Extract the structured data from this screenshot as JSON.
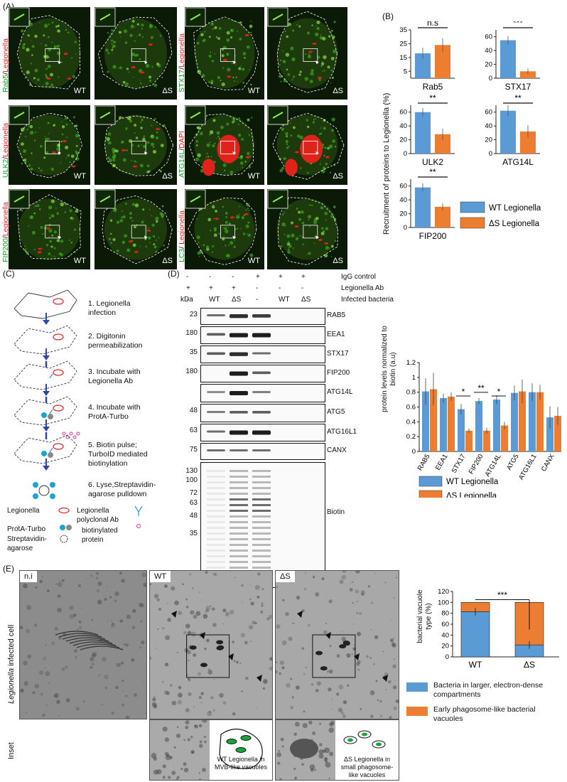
{
  "panels": {
    "A": "(A)",
    "B": "(B)",
    "C": "(C)",
    "D": "(D)",
    "E": "(E)"
  },
  "panelA": {
    "rows": [
      {
        "stain_green": "Rab5",
        "sep": "/",
        "stain_red": "Legionella"
      },
      {
        "stain_green": "ULK2",
        "sep": "/",
        "stain_red": "Legionella"
      },
      {
        "stain_green": "FIP200",
        "sep": "/",
        "stain_red": "Legionella"
      }
    ],
    "rows_right": [
      {
        "stain_green": "STX17",
        "sep": "/",
        "stain_red": "Legionella"
      },
      {
        "stain_green": "ATG14L",
        "sep": "/",
        "stain_red": "DAPI"
      },
      {
        "stain_green": "LC3",
        "sep": "/ ",
        "stain_red": "Legionella"
      }
    ],
    "wt": "WT",
    "ds": "ΔS"
  },
  "panelB": {
    "ylabel": "Recruitment of proteins to Legionella (%)",
    "legend": [
      {
        "name": "WT Legionella",
        "color": "#5b9bd5"
      },
      {
        "name": "ΔS Legionella",
        "color": "#ed7d31"
      }
    ]
  },
  "chart_data": [
    {
      "type": "bar",
      "title": "Rab5",
      "categories": [
        "WT",
        "ΔS"
      ],
      "values": [
        18,
        24
      ],
      "errors": [
        4,
        5
      ],
      "yticks": [
        5,
        15,
        25,
        35
      ],
      "ylim": [
        0,
        35
      ],
      "sig": "n.s"
    },
    {
      "type": "bar",
      "title": "STX17",
      "categories": [
        "WT",
        "ΔS"
      ],
      "values": [
        55,
        10
      ],
      "errors": [
        6,
        4
      ],
      "yticks": [
        0,
        20,
        40,
        60
      ],
      "ylim": [
        0,
        70
      ],
      "sig": "***"
    },
    {
      "type": "bar",
      "title": "ULK2",
      "categories": [
        "WT",
        "ΔS"
      ],
      "values": [
        60,
        28
      ],
      "errors": [
        6,
        8
      ],
      "yticks": [
        0,
        20,
        40,
        60
      ],
      "ylim": [
        0,
        70
      ],
      "sig": "**"
    },
    {
      "type": "bar",
      "title": "ATG14L",
      "categories": [
        "WT",
        "ΔS"
      ],
      "values": [
        62,
        32
      ],
      "errors": [
        8,
        9
      ],
      "yticks": [
        0,
        20,
        40,
        60
      ],
      "ylim": [
        0,
        70
      ],
      "sig": "**"
    },
    {
      "type": "bar",
      "title": "FIP200",
      "categories": [
        "WT",
        "ΔS"
      ],
      "values": [
        58,
        30
      ],
      "errors": [
        6,
        5
      ],
      "yticks": [
        0,
        20,
        40,
        60
      ],
      "ylim": [
        0,
        70
      ],
      "sig": "**"
    },
    {
      "type": "bar",
      "ylabel": "protein levels normalized to biotin (a.u)",
      "categories": [
        "RAB5",
        "EEA1",
        "STX17",
        "FIP200",
        "ATG14L",
        "ATG5",
        "ATG16L1",
        "CANX"
      ],
      "series": [
        {
          "name": "WT Legionella",
          "values": [
            0.81,
            0.72,
            0.57,
            0.68,
            0.7,
            0.79,
            0.8,
            0.46
          ],
          "errors": [
            0.18,
            0.06,
            0.07,
            0.04,
            0.06,
            0.1,
            0.12,
            0.15
          ]
        },
        {
          "name": "ΔS Legionella",
          "values": [
            0.84,
            0.74,
            0.28,
            0.28,
            0.35,
            0.81,
            0.8,
            0.48
          ],
          "errors": [
            0.22,
            0.06,
            0.03,
            0.04,
            0.05,
            0.16,
            0.1,
            0.12
          ]
        }
      ],
      "yticks": [
        0,
        0.2,
        0.4,
        0.6,
        0.8,
        1,
        1.2
      ],
      "ylim": [
        0,
        1.2
      ],
      "sig": [
        "",
        "",
        "*",
        "**",
        "*",
        "",
        "",
        ""
      ]
    },
    {
      "type": "bar",
      "ylabel": "bacterial vacuole type (%)",
      "categories": [
        "WT",
        "ΔS"
      ],
      "series": [
        {
          "name": "Bacteria in larger, electron-dense compartments",
          "values": [
            83,
            22
          ]
        },
        {
          "name": "Early phagosome-like bacterial vacuoles",
          "values": [
            17,
            78
          ]
        }
      ],
      "yticks": [
        0,
        20,
        40,
        60,
        80,
        100,
        120
      ],
      "ylim": [
        0,
        120
      ],
      "sig": "***"
    }
  ],
  "panelC": {
    "steps": [
      "1. Legionella infection",
      "2. Digitonin permeabilization",
      "3. Incubate with Legionella Ab",
      "4. Incubate with ProtA-Turbo",
      "5. Biotin pulse; TurboID mediated biotinylation",
      "6. Lyse,Streptavidin-agarose pulldown"
    ],
    "legend": [
      "Legionella",
      "Legionella polyclonal Ab",
      "ProtA-Turbo",
      "biotinylated protein",
      "Streptavidin-agarose"
    ]
  },
  "panelD": {
    "rowlabels": [
      "IgG control",
      "Legionella Ab",
      "Infected bacteria"
    ],
    "igg": [
      "-",
      "-",
      "-",
      "+",
      "+",
      "+"
    ],
    "ab": [
      "+",
      "+",
      "+",
      "-",
      "-",
      "-"
    ],
    "inf": [
      "-",
      "WT",
      "ΔS",
      "-",
      "WT",
      "ΔS"
    ],
    "kda": "kDa",
    "blots": [
      {
        "name": "RAB5",
        "kda": "23"
      },
      {
        "name": "EEA1",
        "kda": "180"
      },
      {
        "name": "STX17",
        "kda": "35"
      },
      {
        "name": "FIP200",
        "kda": "180"
      },
      {
        "name": "ATG14L",
        "kda": ""
      },
      {
        "name": "ATG5",
        "kda": "48"
      },
      {
        "name": "ATG16L1",
        "kda": "63"
      },
      {
        "name": "CANX",
        "kda": "75"
      }
    ],
    "biotin_kda": [
      "130",
      "100",
      "72",
      "63",
      "48",
      "35"
    ],
    "biotin": "Biotin",
    "legend": [
      "WT Legionella",
      "ΔS Legionella"
    ]
  },
  "panelE": {
    "rowlabel1_it": "Legionella",
    "rowlabel1": " infected cell",
    "rowlabel2": "Inset",
    "cols": [
      "n.i",
      "WT",
      "ΔS"
    ],
    "inset_wt": "WT Legionella in MVB-like vacuoles",
    "inset_ds": "ΔS Legionella in small phagosome-like vacuoles",
    "legend": [
      "Bacteria in larger, electron-dense compartments",
      "Early phagosome-like bacterial vacuoles"
    ],
    "colors": {
      "blue": "#5b9bd5",
      "orange": "#ed7d31"
    }
  }
}
